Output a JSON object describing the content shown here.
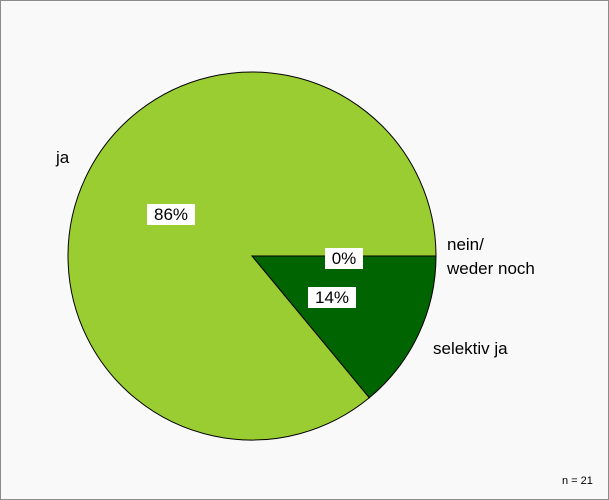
{
  "chart_data": {
    "type": "pie",
    "slices": [
      {
        "label": "ja",
        "value": 86,
        "value_label": "86%",
        "color": "#9acd32"
      },
      {
        "label": "nein/ weder noch",
        "label_lines": [
          "nein/",
          "weder noch"
        ],
        "value": 0,
        "value_label": "0%",
        "color": "#9acd32"
      },
      {
        "label": "selektiv ja",
        "value": 14,
        "value_label": "14%",
        "color": "#006400"
      }
    ],
    "note": "n = 21"
  }
}
